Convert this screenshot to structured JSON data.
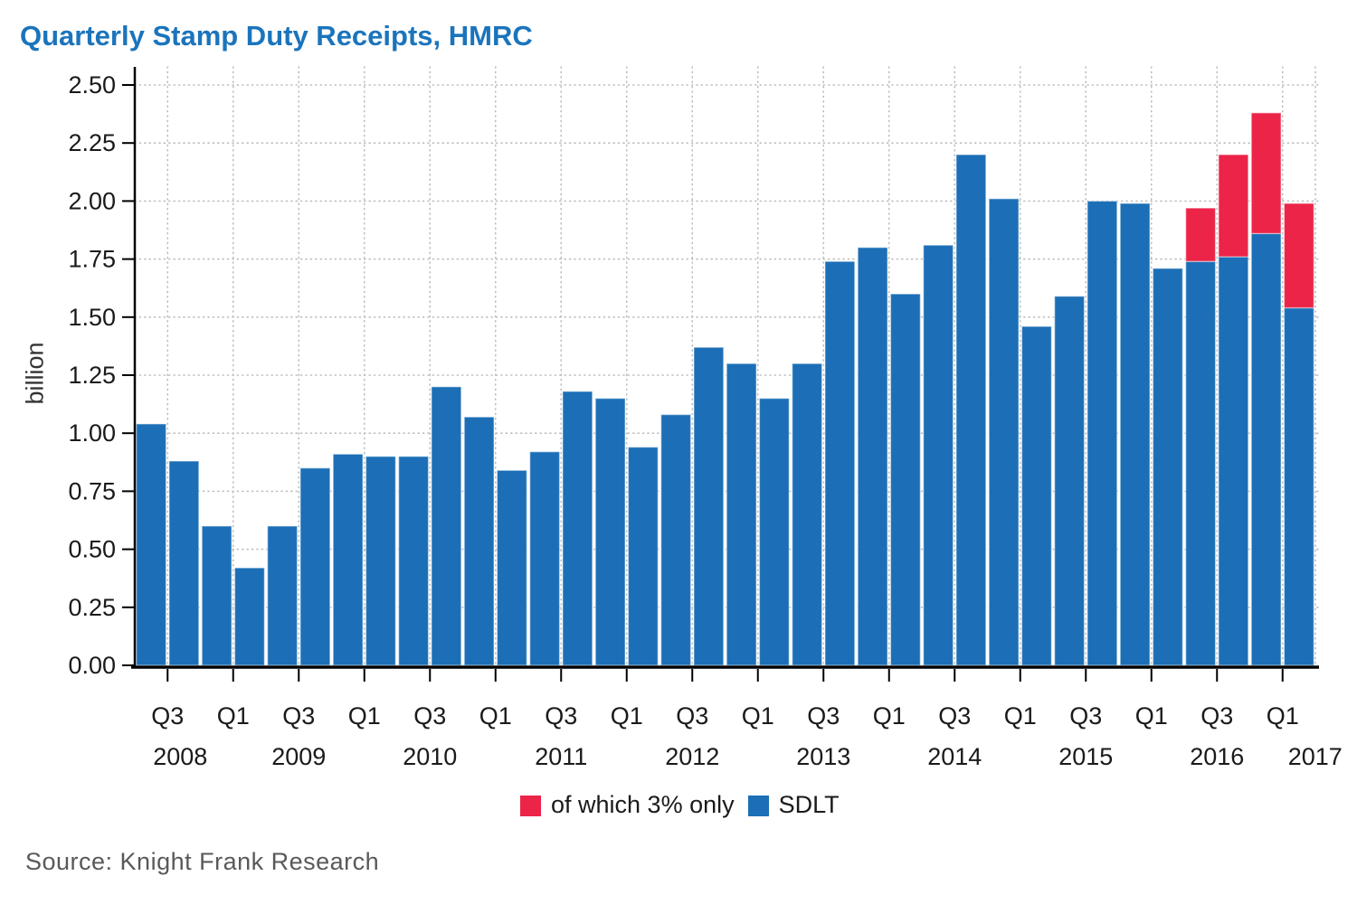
{
  "title": "Quarterly Stamp Duty Receipts, HMRC",
  "source": "Source: Knight Frank Research",
  "colors": {
    "title_text": "#1B74BC",
    "sdlt_blue": "#1C6FB6",
    "surcharge_red": "#EC2448",
    "grid": "#BDBDBD",
    "axis": "#000000",
    "tick_text": "#1A1A1A",
    "bar_edge": "rgba(255,255,255,0.45)"
  },
  "y_axis": {
    "label": "billion",
    "tick_labels": [
      "0.00",
      "0.25",
      "0.50",
      "0.75",
      "1.00",
      "1.25",
      "1.50",
      "1.75",
      "2.00",
      "2.25",
      "2.50"
    ]
  },
  "x_axis": {
    "ticks": [
      {
        "quarter": "Q3",
        "year": "2008"
      },
      {
        "quarter": "Q1",
        "year": ""
      },
      {
        "quarter": "Q3",
        "year": "2009"
      },
      {
        "quarter": "Q1",
        "year": ""
      },
      {
        "quarter": "Q3",
        "year": "2010"
      },
      {
        "quarter": "Q1",
        "year": ""
      },
      {
        "quarter": "Q3",
        "year": "2011"
      },
      {
        "quarter": "Q1",
        "year": ""
      },
      {
        "quarter": "Q3",
        "year": "2012"
      },
      {
        "quarter": "Q1",
        "year": ""
      },
      {
        "quarter": "Q3",
        "year": "2013"
      },
      {
        "quarter": "Q1",
        "year": ""
      },
      {
        "quarter": "Q3",
        "year": "2014"
      },
      {
        "quarter": "Q1",
        "year": ""
      },
      {
        "quarter": "Q3",
        "year": "2015"
      },
      {
        "quarter": "Q1",
        "year": ""
      },
      {
        "quarter": "Q3",
        "year": "2016"
      },
      {
        "quarter": "Q1",
        "year": "2017"
      }
    ]
  },
  "legend": {
    "items": [
      {
        "label": "of which 3% only",
        "color": "#EC2448"
      },
      {
        "label": "SDLT",
        "color": "#1C6FB6"
      }
    ]
  },
  "chart_data": {
    "type": "bar",
    "stacked": true,
    "title": "Quarterly Stamp Duty Receipts, HMRC",
    "xlabel": "",
    "ylabel": "billion",
    "ylim": [
      0,
      2.5
    ],
    "ytick_step": 0.25,
    "grid": true,
    "grid_style": "dotted",
    "legend_position": "bottom-center",
    "categories": [
      "2008 Q2",
      "2008 Q3",
      "2008 Q4",
      "2009 Q1",
      "2009 Q2",
      "2009 Q3",
      "2009 Q4",
      "2010 Q1",
      "2010 Q2",
      "2010 Q3",
      "2010 Q4",
      "2011 Q1",
      "2011 Q2",
      "2011 Q3",
      "2011 Q4",
      "2012 Q1",
      "2012 Q2",
      "2012 Q3",
      "2012 Q4",
      "2013 Q1",
      "2013 Q2",
      "2013 Q3",
      "2013 Q4",
      "2014 Q1",
      "2014 Q2",
      "2014 Q3",
      "2014 Q4",
      "2015 Q1",
      "2015 Q2",
      "2015 Q3",
      "2015 Q4",
      "2016 Q1",
      "2016 Q2",
      "2016 Q3",
      "2016 Q4",
      "2017 Q1"
    ],
    "series": [
      {
        "name": "SDLT",
        "color": "#1C6FB6",
        "values": [
          1.04,
          0.88,
          0.6,
          0.42,
          0.6,
          0.85,
          0.91,
          0.9,
          0.9,
          1.2,
          1.07,
          0.84,
          0.92,
          1.18,
          1.15,
          0.94,
          1.08,
          1.37,
          1.3,
          1.15,
          1.3,
          1.74,
          1.8,
          1.6,
          1.81,
          2.2,
          2.01,
          1.46,
          1.59,
          2.0,
          1.99,
          1.71,
          1.74,
          1.76,
          1.86,
          1.54
        ]
      },
      {
        "name": "of which 3% only",
        "color": "#EC2448",
        "values": [
          0,
          0,
          0,
          0,
          0,
          0,
          0,
          0,
          0,
          0,
          0,
          0,
          0,
          0,
          0,
          0,
          0,
          0,
          0,
          0,
          0,
          0,
          0,
          0,
          0,
          0,
          0,
          0,
          0,
          0,
          0,
          0,
          0.23,
          0.44,
          0.52,
          0.45
        ]
      }
    ]
  }
}
